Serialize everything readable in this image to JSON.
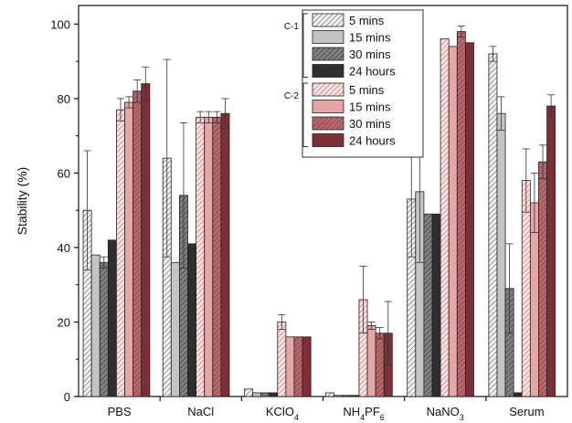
{
  "chart_data": {
    "type": "bar",
    "ylabel": "Stability (%)",
    "ylim": [
      0,
      105
    ],
    "yticks": [
      0,
      20,
      40,
      60,
      80,
      100
    ],
    "categories": [
      "PBS",
      "NaCl",
      "KClO4",
      "NH4PF6",
      "NaNO3",
      "Serum"
    ],
    "category_labels": [
      {
        "base": "PBS",
        "sub": ""
      },
      {
        "base": "NaCl",
        "sub": ""
      },
      {
        "base": "KClO",
        "sub": "4"
      },
      {
        "base": "NH",
        "sub": "4",
        "base2": "PF",
        "sub2": "6"
      },
      {
        "base": "NaNO",
        "sub": "3"
      },
      {
        "base": "Serum",
        "sub": ""
      }
    ],
    "legend_groups": [
      {
        "label": "C-1",
        "series": [
          0,
          1,
          2,
          3
        ]
      },
      {
        "label": "C-2",
        "series": [
          4,
          5,
          6,
          7
        ]
      }
    ],
    "series": [
      {
        "name": "5 mins",
        "fill": "#f2f2f2",
        "hatch": "#6a6a6a",
        "values": [
          50,
          64,
          2,
          1,
          53,
          92
        ],
        "errors": [
          16,
          26.5,
          0.5,
          0.3,
          15.5,
          2
        ]
      },
      {
        "name": "15 mins",
        "fill": "#c4c4c4",
        "hatch": null,
        "values": [
          38,
          36,
          1,
          0.3,
          55,
          76
        ],
        "errors": [
          0.5,
          0.5,
          0.3,
          0.1,
          19,
          4.5
        ]
      },
      {
        "name": "30 mins",
        "fill": "#808080",
        "hatch": "#3c3c3c",
        "values": [
          36,
          54,
          1,
          0.3,
          49,
          29
        ],
        "errors": [
          1.5,
          19.5,
          0.3,
          0.1,
          0.5,
          12
        ]
      },
      {
        "name": "24 hours",
        "fill": "#2f2f2f",
        "hatch": null,
        "values": [
          42,
          41,
          1,
          0.3,
          49,
          1
        ],
        "errors": [
          0.5,
          0.5,
          0.3,
          0.1,
          0.5,
          0.5
        ]
      },
      {
        "name": "5 mins",
        "fill": "#fbe2e2",
        "hatch": "#c86e6e",
        "values": [
          77,
          75,
          20,
          26,
          96,
          58
        ],
        "errors": [
          3,
          1.5,
          2,
          9,
          0.5,
          8.5
        ]
      },
      {
        "name": "15 mins",
        "fill": "#e7a6a6",
        "hatch": null,
        "values": [
          79,
          75,
          16,
          19,
          94,
          52
        ],
        "errors": [
          1.5,
          1.5,
          0.5,
          1,
          0.5,
          8
        ]
      },
      {
        "name": "30 mins",
        "fill": "#b5696d",
        "hatch": "#7c3c40",
        "values": [
          82,
          75,
          16,
          17,
          98,
          63
        ],
        "errors": [
          3,
          1.5,
          0.5,
          1.5,
          1.5,
          4.5
        ]
      },
      {
        "name": "24 hours",
        "fill": "#7c2f37",
        "hatch": null,
        "values": [
          84,
          76,
          16,
          17,
          95,
          78
        ],
        "errors": [
          4.5,
          4,
          0.5,
          8.5,
          0.5,
          3
        ]
      }
    ],
    "legend": "top-right, inside plot",
    "grid": false
  }
}
